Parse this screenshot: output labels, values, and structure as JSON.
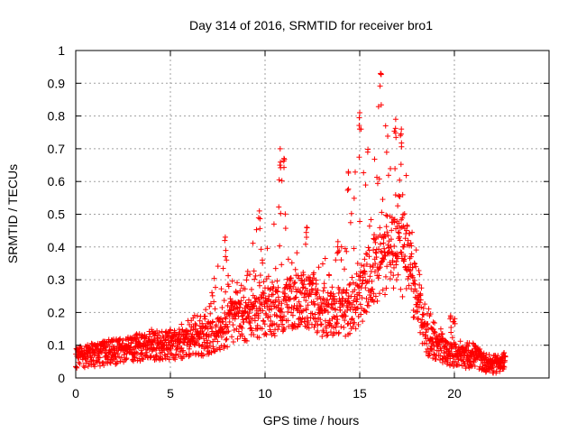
{
  "chart_data": {
    "type": "scatter",
    "title": "Day 314 of 2016, SRMTID for receiver bro1",
    "xlabel": "GPS time / hours",
    "ylabel": "SRMTID / TECUs",
    "xlim": [
      0,
      25
    ],
    "ylim": [
      0,
      1
    ],
    "xticks": [
      0,
      5,
      10,
      15,
      20
    ],
    "yticks": [
      0,
      0.1,
      0.2,
      0.3,
      0.4,
      0.5,
      0.6,
      0.7,
      0.8,
      0.9,
      1
    ],
    "xtick_labels": [
      "0",
      "5",
      "10",
      "15",
      "20"
    ],
    "ytick_labels": [
      "0",
      "0.1",
      "0.2",
      "0.3",
      "0.4",
      "0.5",
      "0.6",
      "0.7",
      "0.8",
      "0.9",
      "1"
    ],
    "grid": true,
    "legend": "none",
    "marker": "+",
    "color": "#ff0000",
    "envelope": {
      "description": "approximate baseline level and peak spread of the point cloud by hour",
      "hours": [
        0,
        1,
        2,
        3,
        4,
        5,
        6,
        7,
        7.8,
        8.2,
        9,
        9.7,
        10,
        10.8,
        11,
        11.5,
        12,
        12.5,
        13,
        13.8,
        14.3,
        15,
        15.5,
        16,
        16.5,
        17,
        17.5,
        18,
        18.5,
        19,
        19.5,
        20,
        20.5,
        21,
        21.5,
        22,
        22.7
      ],
      "base": [
        0.06,
        0.07,
        0.08,
        0.09,
        0.1,
        0.1,
        0.11,
        0.12,
        0.14,
        0.17,
        0.18,
        0.19,
        0.21,
        0.2,
        0.22,
        0.23,
        0.24,
        0.23,
        0.2,
        0.21,
        0.2,
        0.25,
        0.3,
        0.35,
        0.38,
        0.37,
        0.35,
        0.25,
        0.12,
        0.1,
        0.08,
        0.07,
        0.06,
        0.07,
        0.05,
        0.04,
        0.05
      ],
      "peak": [
        0.1,
        0.11,
        0.12,
        0.13,
        0.15,
        0.15,
        0.18,
        0.22,
        0.44,
        0.3,
        0.3,
        0.52,
        0.35,
        0.7,
        0.68,
        0.45,
        0.46,
        0.32,
        0.37,
        0.44,
        0.4,
        0.81,
        0.7,
        0.93,
        0.8,
        0.77,
        0.68,
        0.4,
        0.22,
        0.19,
        0.12,
        0.19,
        0.11,
        0.11,
        0.08,
        0.06,
        0.07
      ]
    },
    "notable_points": [
      {
        "x": 7.9,
        "y": 0.43
      },
      {
        "x": 9.7,
        "y": 0.51
      },
      {
        "x": 10.8,
        "y": 0.7
      },
      {
        "x": 11.0,
        "y": 0.67
      },
      {
        "x": 12.2,
        "y": 0.46
      },
      {
        "x": 14.4,
        "y": 0.63
      },
      {
        "x": 15.0,
        "y": 0.81
      },
      {
        "x": 16.1,
        "y": 0.93
      },
      {
        "x": 16.9,
        "y": 0.79
      },
      {
        "x": 17.2,
        "y": 0.76
      },
      {
        "x": 19.8,
        "y": 0.19
      }
    ]
  }
}
